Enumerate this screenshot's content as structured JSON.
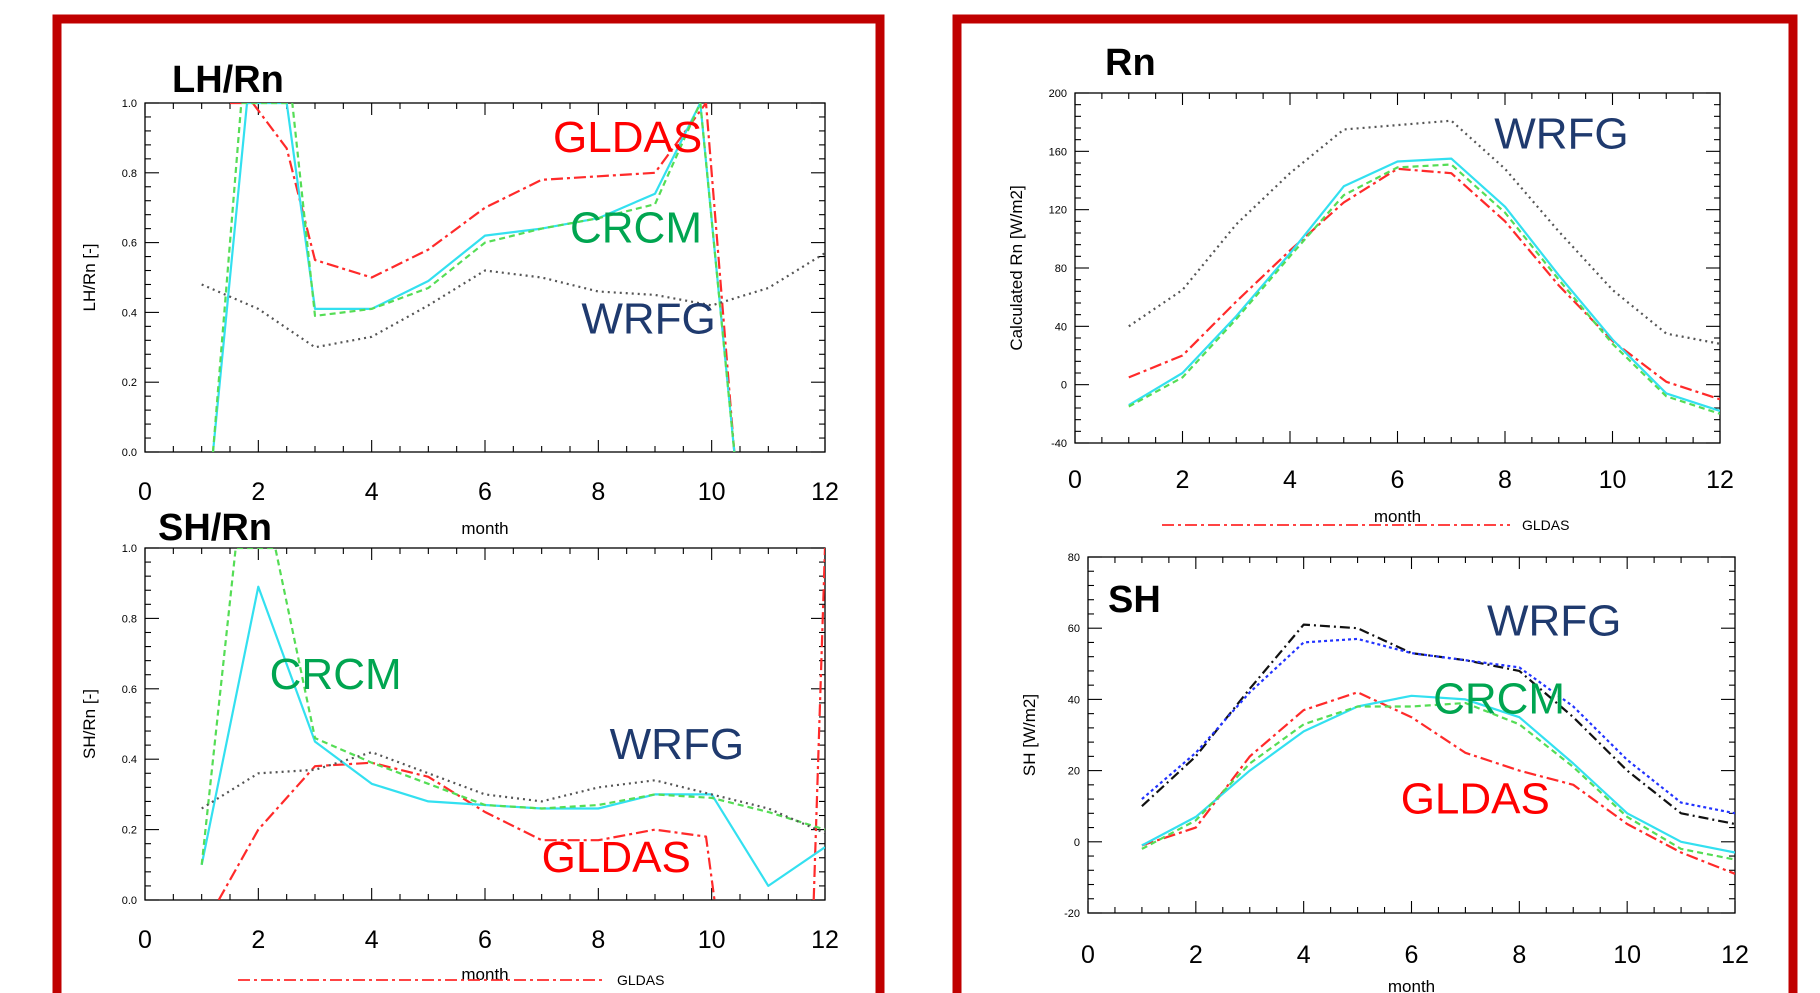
{
  "colors": {
    "frame": "#c00000",
    "GLDAS": "#ff2a2a",
    "CRCM_green": "#55dd55",
    "CRCM_cyan": "#33e0f0",
    "WRFG_grey": "#555555",
    "WRFG_black": "#111111",
    "WRFG_blue": "#2233ff",
    "label_GLDAS": "#ff0000",
    "label_CRCM": "#00a550",
    "label_WRFG": "#1f3a6e"
  },
  "chart_data": [
    {
      "id": "lhrn",
      "type": "line",
      "title": "LH/Rn",
      "xlabel": "month",
      "ylabel": "LH/Rn [-]",
      "xlim": [
        0,
        12
      ],
      "ylim": [
        0,
        1
      ],
      "xticks": [
        "0",
        "2",
        "4",
        "6",
        "8",
        "10",
        "12"
      ],
      "yticks": [
        "0.0",
        "0.2",
        "0.4",
        "0.6",
        "0.8",
        "1.0"
      ],
      "annotations": [
        {
          "text": "GLDAS",
          "x": 7.2,
          "y": 0.86,
          "color": "label_GLDAS"
        },
        {
          "text": "CRCM",
          "x": 7.5,
          "y": 0.6,
          "color": "label_CRCM"
        },
        {
          "text": "WRFG",
          "x": 7.7,
          "y": 0.34,
          "color": "label_WRFG"
        }
      ],
      "series": [
        {
          "color": "GLDAS",
          "dash": "12,4,3,4",
          "x": [
            1.5,
            1.9,
            2.5,
            3,
            4,
            5,
            6,
            7,
            8,
            9,
            9.9,
            10.4
          ],
          "y": [
            1.0,
            1.0,
            0.87,
            0.55,
            0.5,
            0.58,
            0.7,
            0.78,
            0.79,
            0.8,
            1.0,
            0.0
          ]
        },
        {
          "color": "CRCM_cyan",
          "dash": "",
          "x": [
            1.2,
            1.8,
            2.5,
            3,
            4,
            5,
            6,
            7,
            8,
            9,
            9.8,
            10.4
          ],
          "y": [
            0.0,
            1.0,
            1.0,
            0.41,
            0.41,
            0.49,
            0.62,
            0.64,
            0.67,
            0.74,
            1.0,
            0.0
          ]
        },
        {
          "color": "CRCM_green",
          "dash": "6,4",
          "x": [
            1.2,
            1.7,
            2.6,
            3,
            4,
            5,
            6,
            7,
            8,
            9,
            9.8,
            10.4
          ],
          "y": [
            0.0,
            1.0,
            1.0,
            0.39,
            0.41,
            0.47,
            0.6,
            0.64,
            0.67,
            0.71,
            1.0,
            0.0
          ]
        },
        {
          "color": "WRFG_grey",
          "dash": "2,4",
          "x": [
            1,
            2,
            3,
            4,
            5,
            6,
            7,
            8,
            9,
            10,
            11,
            12
          ],
          "y": [
            0.48,
            0.41,
            0.3,
            0.33,
            0.42,
            0.52,
            0.5,
            0.46,
            0.45,
            0.42,
            0.47,
            0.57
          ]
        }
      ]
    },
    {
      "id": "shrn",
      "type": "line",
      "title": "SH/Rn",
      "xlabel": "month",
      "ylabel": "SH/Rn [-]",
      "xlim": [
        0,
        12
      ],
      "ylim": [
        0,
        1
      ],
      "xticks": [
        "0",
        "2",
        "4",
        "6",
        "8",
        "10",
        "12"
      ],
      "yticks": [
        "0.0",
        "0.2",
        "0.4",
        "0.6",
        "0.8",
        "1.0"
      ],
      "legend": {
        "text": "GLDAS",
        "color": "GLDAS",
        "dash": "12,4,3,4"
      },
      "annotations": [
        {
          "text": "CRCM",
          "x": 2.2,
          "y": 0.6,
          "color": "label_CRCM"
        },
        {
          "text": "WRFG",
          "x": 8.2,
          "y": 0.4,
          "color": "label_WRFG"
        },
        {
          "text": "GLDAS",
          "x": 7.0,
          "y": 0.08,
          "color": "label_GLDAS"
        }
      ],
      "series": [
        {
          "color": "GLDAS",
          "dash": "12,4,3,4",
          "x": [
            1.3,
            2,
            3,
            4,
            5,
            6,
            7,
            8,
            9,
            9.9,
            10.05
          ],
          "y": [
            0.0,
            0.2,
            0.38,
            0.39,
            0.35,
            0.25,
            0.17,
            0.17,
            0.2,
            0.18,
            0.0
          ]
        },
        {
          "color": "GLDAS",
          "dash": "12,4,3,4",
          "x": [
            11.8,
            12
          ],
          "y": [
            0.0,
            1.0
          ]
        },
        {
          "color": "CRCM_cyan",
          "dash": "",
          "x": [
            1,
            2,
            3,
            4,
            5,
            6,
            7,
            8,
            9,
            10,
            11,
            12
          ],
          "y": [
            0.1,
            0.89,
            0.45,
            0.33,
            0.28,
            0.27,
            0.26,
            0.26,
            0.3,
            0.3,
            0.04,
            0.15
          ]
        },
        {
          "color": "CRCM_green",
          "dash": "6,4",
          "x": [
            1,
            1.6,
            2.3,
            3,
            4,
            5,
            6,
            7,
            8,
            9,
            10,
            11,
            12
          ],
          "y": [
            0.1,
            1.0,
            1.0,
            0.46,
            0.39,
            0.33,
            0.27,
            0.26,
            0.27,
            0.3,
            0.29,
            0.25,
            0.2
          ]
        },
        {
          "color": "WRFG_grey",
          "dash": "2,4",
          "x": [
            1,
            2,
            3,
            4,
            5,
            6,
            7,
            8,
            9,
            10,
            11,
            12
          ],
          "y": [
            0.26,
            0.36,
            0.37,
            0.42,
            0.36,
            0.3,
            0.28,
            0.32,
            0.34,
            0.3,
            0.26,
            0.19
          ]
        }
      ]
    },
    {
      "id": "rn",
      "type": "line",
      "title": "Rn",
      "xlabel": "month",
      "ylabel": "Calculated Rn [W/m2]",
      "xlim": [
        0,
        12
      ],
      "ylim": [
        -40,
        200
      ],
      "xticks": [
        "0",
        "2",
        "4",
        "6",
        "8",
        "10",
        "12"
      ],
      "yticks": [
        "-40",
        "0",
        "40",
        "80",
        "120",
        "160",
        "200"
      ],
      "legend": {
        "text": "GLDAS",
        "color": "GLDAS",
        "dash": "12,4,3,4"
      },
      "annotations": [
        {
          "text": "WRFG",
          "x": 7.8,
          "y": 162,
          "color": "label_WRFG"
        }
      ],
      "series": [
        {
          "color": "WRFG_grey",
          "dash": "2,4",
          "x": [
            1,
            2,
            3,
            4,
            5,
            6,
            7,
            8,
            9,
            10,
            11,
            12
          ],
          "y": [
            40,
            65,
            110,
            145,
            175,
            178,
            181,
            148,
            105,
            65,
            35,
            28
          ]
        },
        {
          "color": "GLDAS",
          "dash": "12,4,3,4",
          "x": [
            1,
            2,
            3,
            4,
            5,
            6,
            7,
            8,
            9,
            10,
            11,
            12
          ],
          "y": [
            5,
            20,
            57,
            92,
            125,
            148,
            145,
            112,
            68,
            30,
            2,
            -10
          ]
        },
        {
          "color": "CRCM_cyan",
          "dash": "",
          "x": [
            1,
            2,
            3,
            4,
            5,
            6,
            7,
            8,
            9,
            10,
            11,
            12
          ],
          "y": [
            -14,
            8,
            47,
            90,
            136,
            153,
            155,
            122,
            75,
            31,
            -6,
            -18
          ]
        },
        {
          "color": "CRCM_green",
          "dash": "6,4",
          "x": [
            1,
            2,
            3,
            4,
            5,
            6,
            7,
            8,
            9,
            10,
            11,
            12
          ],
          "y": [
            -15,
            5,
            45,
            88,
            130,
            149,
            151,
            118,
            72,
            28,
            -8,
            -20
          ]
        }
      ]
    },
    {
      "id": "sh",
      "type": "line",
      "title": "SH",
      "xlabel": "month",
      "ylabel": "SH [W/m2]",
      "xlim": [
        0,
        12
      ],
      "ylim": [
        -20,
        80
      ],
      "xticks": [
        "0",
        "2",
        "4",
        "6",
        "8",
        "10",
        "12"
      ],
      "yticks": [
        "-20",
        "0",
        "20",
        "40",
        "60",
        "80"
      ],
      "annotations": [
        {
          "text": "WRFG",
          "x": 7.4,
          "y": 58,
          "color": "label_WRFG"
        },
        {
          "text": "CRCM",
          "x": 6.4,
          "y": 36,
          "color": "label_CRCM"
        },
        {
          "text": "GLDAS",
          "x": 5.8,
          "y": 8,
          "color": "label_GLDAS"
        }
      ],
      "series": [
        {
          "color": "WRFG_black",
          "dash": "10,4,2,4",
          "x": [
            1,
            2,
            3,
            4,
            5,
            6,
            7,
            8,
            9,
            10,
            11,
            12
          ],
          "y": [
            10,
            24,
            43,
            61,
            60,
            53,
            51,
            48,
            35,
            20,
            8,
            5
          ]
        },
        {
          "color": "WRFG_blue",
          "dash": "3,3",
          "x": [
            1,
            2,
            3,
            4,
            5,
            6,
            7,
            8,
            9,
            10,
            11,
            12
          ],
          "y": [
            12,
            25,
            42,
            56,
            57,
            53,
            51,
            49,
            38,
            23,
            11,
            8
          ]
        },
        {
          "color": "GLDAS",
          "dash": "12,4,3,4",
          "x": [
            1,
            2,
            3,
            4,
            5,
            6,
            7,
            8,
            9,
            10,
            11,
            12
          ],
          "y": [
            -1,
            4,
            24,
            37,
            42,
            35,
            25,
            20,
            16,
            5,
            -3,
            -9
          ]
        },
        {
          "color": "CRCM_cyan",
          "dash": "",
          "x": [
            1,
            2,
            3,
            4,
            5,
            6,
            7,
            8,
            9,
            10,
            11,
            12
          ],
          "y": [
            -1,
            7,
            20,
            31,
            38,
            41,
            40,
            35,
            22,
            8,
            0,
            -3
          ]
        },
        {
          "color": "CRCM_green",
          "dash": "6,4",
          "x": [
            1,
            2,
            3,
            4,
            5,
            6,
            7,
            8,
            9,
            10,
            11,
            12
          ],
          "y": [
            -2,
            6,
            22,
            33,
            38,
            38,
            39,
            33,
            21,
            7,
            -2,
            -5
          ]
        }
      ]
    }
  ]
}
